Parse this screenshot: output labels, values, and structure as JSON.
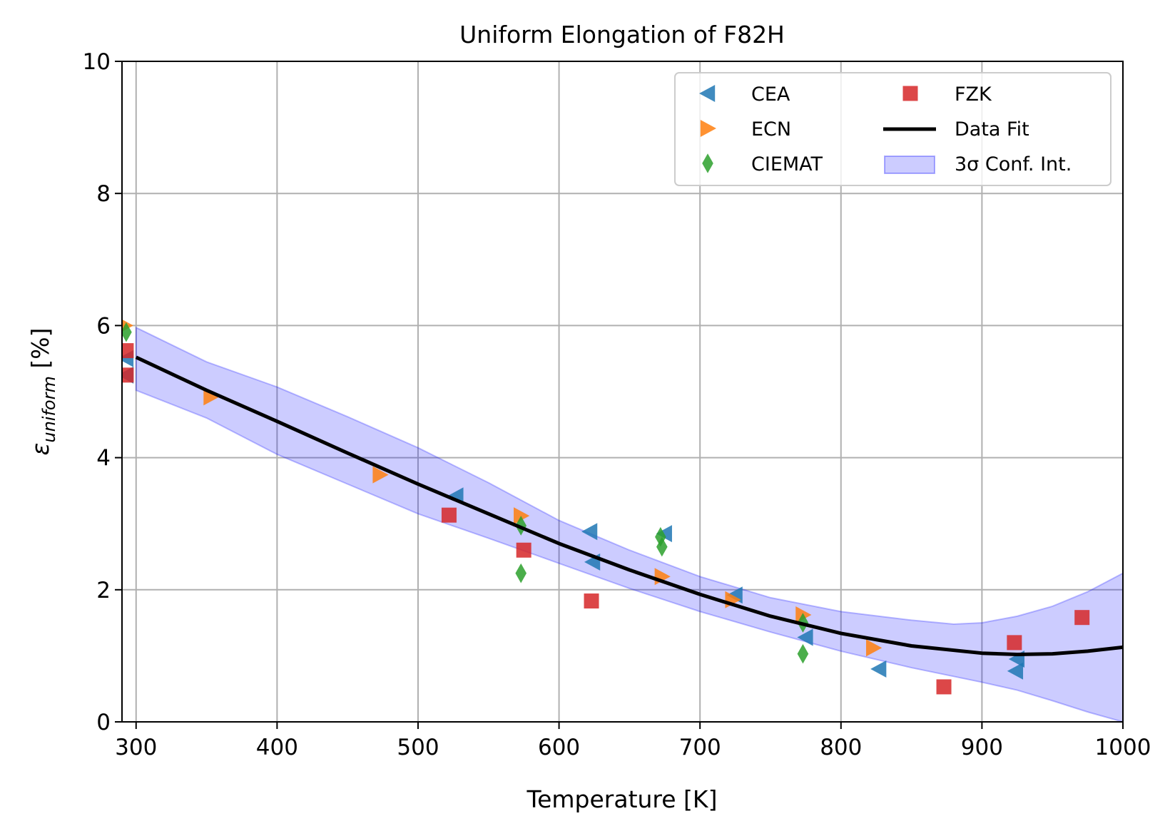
{
  "chart_data": {
    "type": "scatter",
    "title": "Uniform Elongation of F82H",
    "xlabel": "Temperature [K]",
    "ylabel_main": "ε",
    "ylabel_sub": "uniform",
    "ylabel_unit": " [%]",
    "xlim": [
      290,
      1000
    ],
    "ylim": [
      0,
      10
    ],
    "xticks": [
      300,
      400,
      500,
      600,
      700,
      800,
      900,
      1000
    ],
    "yticks": [
      0,
      2,
      4,
      6,
      8,
      10
    ],
    "grid": true,
    "legend_position": "top-right",
    "legend_columns": 2,
    "series": [
      {
        "name": "CEA",
        "marker": "triangle-left",
        "color": "#1f77b4",
        "points": [
          [
            293,
            5.5
          ],
          [
            293,
            5.25
          ],
          [
            527,
            3.42
          ],
          [
            622,
            2.88
          ],
          [
            624,
            2.42
          ],
          [
            675,
            2.85
          ],
          [
            725,
            1.92
          ],
          [
            775,
            1.28
          ],
          [
            827,
            0.8
          ],
          [
            925,
            0.95
          ],
          [
            924,
            0.77
          ]
        ]
      },
      {
        "name": "ECN",
        "marker": "triangle-right",
        "color": "#ff7f0e",
        "points": [
          [
            292,
            6.0
          ],
          [
            353,
            4.92
          ],
          [
            473,
            3.74
          ],
          [
            573,
            3.12
          ],
          [
            673,
            2.2
          ],
          [
            723,
            1.85
          ],
          [
            773,
            1.62
          ],
          [
            823,
            1.12
          ]
        ]
      },
      {
        "name": "CIEMAT",
        "marker": "diamond",
        "color": "#2ca02c",
        "points": [
          [
            293,
            5.9
          ],
          [
            573,
            2.97
          ],
          [
            573,
            2.25
          ],
          [
            672,
            2.8
          ],
          [
            673,
            2.65
          ],
          [
            773,
            1.5
          ],
          [
            773,
            1.03
          ]
        ]
      },
      {
        "name": "FZK",
        "marker": "square",
        "color": "#d62728",
        "points": [
          [
            293,
            5.62
          ],
          [
            293,
            5.25
          ],
          [
            522,
            3.13
          ],
          [
            575,
            2.6
          ],
          [
            623,
            1.83
          ],
          [
            873,
            0.53
          ],
          [
            923,
            1.2
          ],
          [
            971,
            1.58
          ]
        ]
      }
    ],
    "fit": {
      "name": "Data Fit",
      "color": "#000000",
      "points": [
        [
          300,
          5.52
        ],
        [
          350,
          5.02
        ],
        [
          400,
          4.55
        ],
        [
          450,
          4.07
        ],
        [
          500,
          3.6
        ],
        [
          550,
          3.15
        ],
        [
          600,
          2.7
        ],
        [
          650,
          2.3
        ],
        [
          700,
          1.93
        ],
        [
          750,
          1.6
        ],
        [
          800,
          1.34
        ],
        [
          850,
          1.15
        ],
        [
          900,
          1.04
        ],
        [
          925,
          1.02
        ],
        [
          950,
          1.03
        ],
        [
          975,
          1.07
        ],
        [
          1000,
          1.13
        ]
      ]
    },
    "confidence_band": {
      "name": "3σ Conf. Int.",
      "color": "#0000ff",
      "upper": [
        [
          300,
          5.97
        ],
        [
          350,
          5.45
        ],
        [
          400,
          5.07
        ],
        [
          450,
          4.62
        ],
        [
          500,
          4.15
        ],
        [
          550,
          3.62
        ],
        [
          600,
          3.05
        ],
        [
          650,
          2.6
        ],
        [
          700,
          2.2
        ],
        [
          750,
          1.88
        ],
        [
          800,
          1.67
        ],
        [
          850,
          1.54
        ],
        [
          880,
          1.48
        ],
        [
          900,
          1.5
        ],
        [
          925,
          1.6
        ],
        [
          950,
          1.75
        ],
        [
          975,
          1.97
        ],
        [
          1000,
          2.25
        ]
      ],
      "lower": [
        [
          300,
          5.02
        ],
        [
          350,
          4.6
        ],
        [
          400,
          4.05
        ],
        [
          450,
          3.6
        ],
        [
          500,
          3.15
        ],
        [
          550,
          2.78
        ],
        [
          600,
          2.4
        ],
        [
          650,
          2.02
        ],
        [
          700,
          1.67
        ],
        [
          750,
          1.36
        ],
        [
          800,
          1.07
        ],
        [
          850,
          0.82
        ],
        [
          900,
          0.6
        ],
        [
          925,
          0.48
        ],
        [
          950,
          0.32
        ],
        [
          975,
          0.15
        ],
        [
          1000,
          0.0
        ]
      ]
    }
  }
}
